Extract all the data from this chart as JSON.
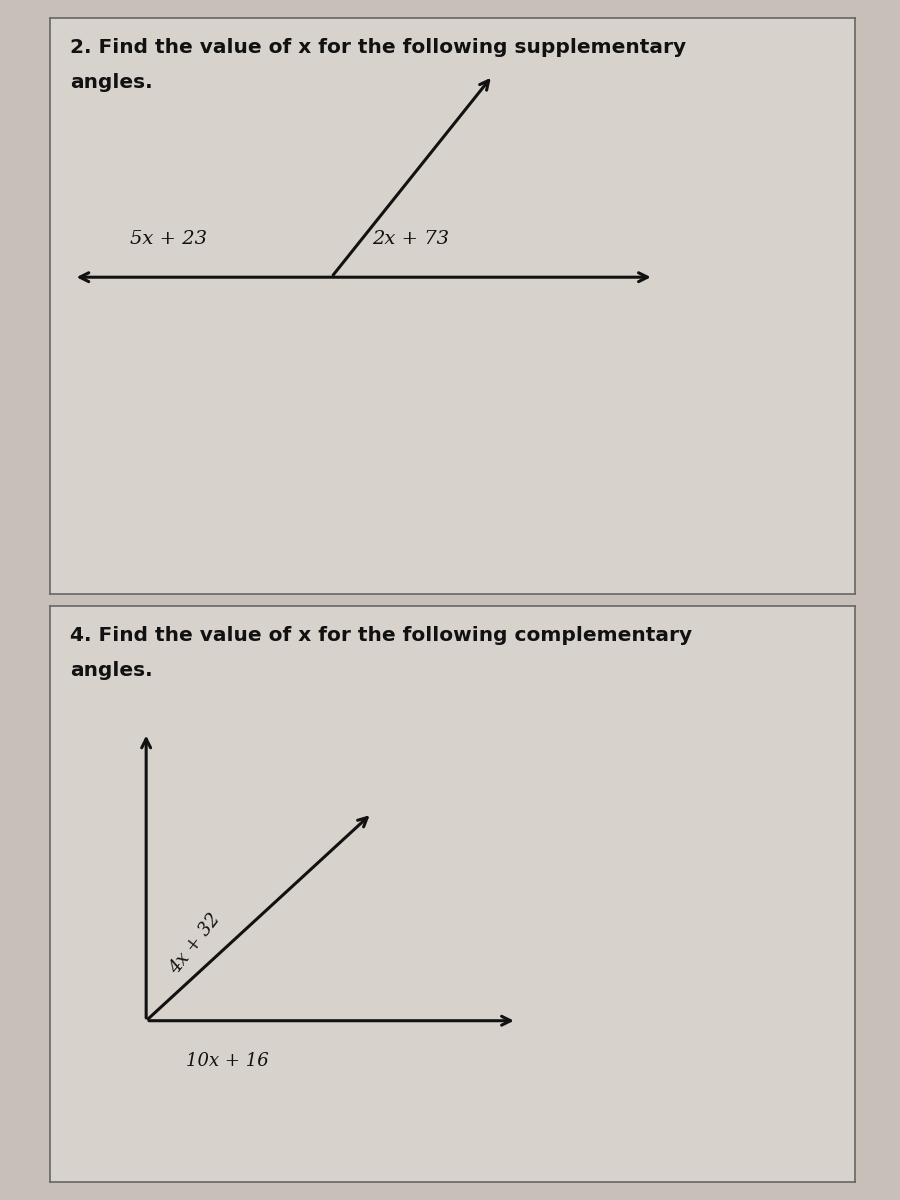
{
  "background_color": "#c8c0b8",
  "panel_color": "#d8d2cc",
  "border_color": "#666666",
  "text_color": "#111111",
  "line_color": "#111111",
  "problem2": {
    "title_line1": "2. Find the value of x for the following supplementary",
    "title_line2": "angles.",
    "label_left": "5x + 23",
    "label_right": "2x + 73"
  },
  "problem4": {
    "title_line1": "4. Find the value of x for the following complementary",
    "title_line2": "angles.",
    "label_diag": "4x + 32",
    "label_horiz": "10x + 16"
  }
}
